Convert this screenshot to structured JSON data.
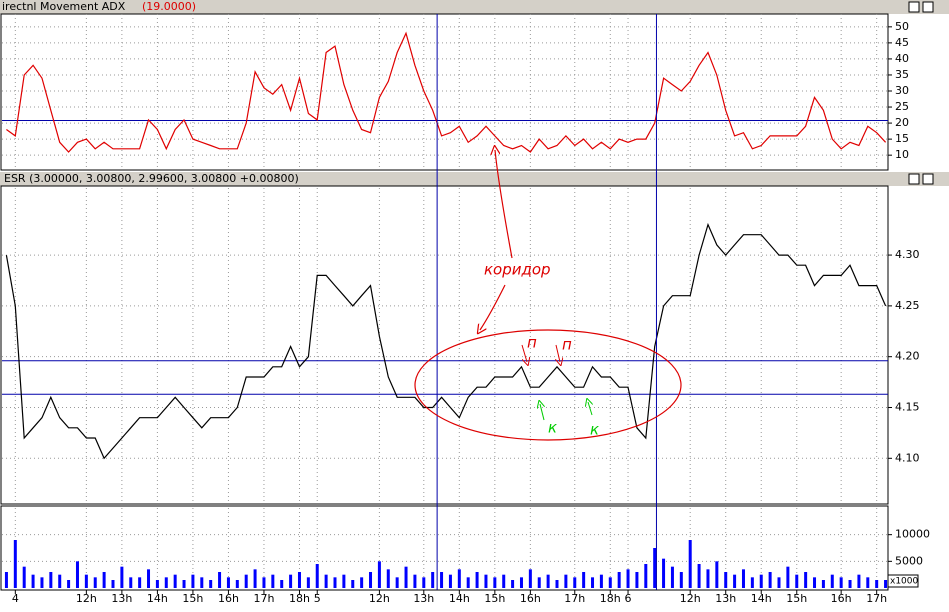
{
  "chart_data": [
    {
      "type": "line",
      "title": "irectnl Movement ADX",
      "subtitle": "(19.0000)",
      "color": "#e00000",
      "values": [
        18,
        16,
        35,
        38,
        34,
        24,
        14,
        11,
        14,
        15,
        12,
        14,
        12,
        12,
        12,
        12,
        21,
        18,
        12,
        18,
        21,
        15,
        14,
        13,
        12,
        12,
        12,
        20,
        36,
        31,
        29,
        32,
        24,
        34,
        23,
        21,
        42,
        44,
        32,
        24,
        18,
        17,
        28,
        33,
        42,
        48,
        38,
        30,
        24,
        16,
        17,
        19,
        14,
        16,
        19,
        16,
        13,
        12,
        13,
        11,
        15,
        12,
        13,
        16,
        13,
        15,
        12,
        14,
        12,
        15,
        14,
        15,
        15,
        20,
        34,
        32,
        30,
        33,
        38,
        42,
        35,
        24,
        16,
        17,
        12,
        13,
        16,
        16,
        16,
        16,
        19,
        28,
        24,
        15,
        12,
        14,
        13,
        19,
        17,
        14
      ],
      "ylim": [
        6,
        54
      ],
      "yticks": [
        10,
        15,
        20,
        25,
        30,
        35,
        40,
        45,
        50
      ],
      "grid": true,
      "hlines": [
        20.8
      ],
      "vlines": [
        48.5,
        73.2
      ],
      "line_color": "#0000aa"
    },
    {
      "type": "line",
      "title": "ESR (3.00000, 3.00800, 2.99600, 3.00800 +0.00800)",
      "color": "#000000",
      "values": [
        4.3,
        4.25,
        4.12,
        4.13,
        4.14,
        4.16,
        4.14,
        4.13,
        4.13,
        4.12,
        4.12,
        4.1,
        4.11,
        4.12,
        4.13,
        4.14,
        4.14,
        4.14,
        4.15,
        4.16,
        4.15,
        4.14,
        4.13,
        4.14,
        4.14,
        4.14,
        4.15,
        4.18,
        4.18,
        4.18,
        4.19,
        4.19,
        4.21,
        4.19,
        4.2,
        4.28,
        4.28,
        4.27,
        4.26,
        4.25,
        4.26,
        4.27,
        4.22,
        4.18,
        4.16,
        4.16,
        4.16,
        4.15,
        4.15,
        4.16,
        4.15,
        4.14,
        4.16,
        4.17,
        4.17,
        4.18,
        4.18,
        4.18,
        4.19,
        4.17,
        4.17,
        4.18,
        4.19,
        4.18,
        4.17,
        4.17,
        4.19,
        4.18,
        4.18,
        4.17,
        4.17,
        4.13,
        4.12,
        4.21,
        4.25,
        4.26,
        4.26,
        4.26,
        4.3,
        4.33,
        4.31,
        4.3,
        4.31,
        4.32,
        4.32,
        4.32,
        4.31,
        4.3,
        4.3,
        4.29,
        4.29,
        4.27,
        4.28,
        4.28,
        4.28,
        4.29,
        4.27,
        4.27,
        4.27,
        4.25
      ],
      "ylim": [
        4.057,
        4.366
      ],
      "yticks": [
        {
          "value": 4.1,
          "label": "4.10"
        },
        4.15,
        {
          "value": 4.2,
          "label": "4.20"
        },
        4.25,
        {
          "value": 4.3,
          "label": "4.30"
        }
      ],
      "grid": true,
      "hlines": [
        4.196,
        4.163
      ]
    },
    {
      "type": "bar",
      "color": "#0000ff",
      "unit_label": "x1000",
      "categories": [
        null,
        "4",
        null,
        null,
        null,
        null,
        null,
        null,
        null,
        "12h",
        null,
        null,
        null,
        "13h",
        null,
        null,
        null,
        "14h",
        null,
        null,
        null,
        "15h",
        null,
        null,
        null,
        "16h",
        null,
        null,
        null,
        "17h",
        null,
        null,
        null,
        "18h",
        null,
        "5",
        null,
        null,
        null,
        null,
        null,
        null,
        "12h",
        null,
        null,
        null,
        null,
        "13h",
        null,
        null,
        null,
        "14h",
        null,
        null,
        null,
        "15h",
        null,
        null,
        null,
        "16h",
        null,
        null,
        null,
        null,
        "17h",
        null,
        null,
        null,
        "18h",
        null,
        "6",
        null,
        null,
        null,
        null,
        null,
        null,
        "12h",
        null,
        null,
        null,
        "13h",
        null,
        null,
        null,
        "14h",
        null,
        null,
        null,
        "15h",
        null,
        null,
        null,
        null,
        "16h",
        null,
        null,
        null,
        "17h",
        null
      ],
      "values": [
        3000,
        9000,
        4000,
        2500,
        2000,
        3000,
        2500,
        1500,
        5000,
        2500,
        2000,
        3000,
        1500,
        4000,
        2000,
        2000,
        3500,
        1500,
        2000,
        2500,
        1500,
        2500,
        2000,
        1500,
        3000,
        2000,
        1500,
        2500,
        3500,
        2000,
        2500,
        1500,
        2500,
        3000,
        2000,
        4500,
        2500,
        2000,
        2500,
        1500,
        2000,
        3000,
        5000,
        3500,
        2000,
        4000,
        2500,
        2000,
        3000,
        3000,
        2500,
        3500,
        2000,
        3000,
        2500,
        2000,
        2500,
        1500,
        2000,
        3500,
        2000,
        2500,
        1500,
        2500,
        2000,
        3000,
        2000,
        2500,
        2000,
        3000,
        3500,
        3000,
        4500,
        7500,
        5500,
        4000,
        3000,
        9000,
        4500,
        3500,
        5000,
        3000,
        2500,
        3500,
        2000,
        2500,
        3000,
        2000,
        4000,
        2500,
        3000,
        2000,
        1500,
        2500,
        2000,
        1500,
        2500,
        2000,
        1500,
        1500
      ],
      "ylim": [
        0,
        15000
      ],
      "yticks": [
        5000,
        10000
      ],
      "grid": true
    }
  ],
  "annotations": [
    "коридор",
    "п",
    "п",
    "к",
    "к"
  ]
}
